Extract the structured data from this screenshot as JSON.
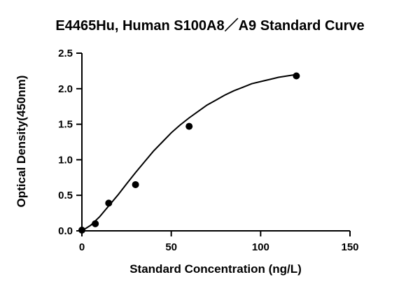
{
  "chart_data": {
    "type": "scatter",
    "title": "E4465Hu, Human S100A8／A9 Standard Curve",
    "xlabel": "Standard Concentration (ng/L)",
    "ylabel": "Optical Density(450nm)",
    "xlim": [
      0,
      150
    ],
    "ylim": [
      0,
      2.5
    ],
    "xticks": [
      0,
      50,
      100,
      150
    ],
    "xtick_labels": [
      "0",
      "50",
      "100",
      "150"
    ],
    "yticks": [
      0.0,
      0.5,
      1.0,
      1.5,
      2.0,
      2.5
    ],
    "ytick_labels": [
      "0.0",
      "0.5",
      "1.0",
      "1.5",
      "2.0",
      "2.5"
    ],
    "grid": false,
    "series": [
      {
        "x": [
          0,
          7.5,
          15,
          30,
          60,
          120
        ],
        "y": [
          0.01,
          0.1,
          0.39,
          0.65,
          1.47,
          2.18
        ]
      }
    ],
    "fit_curve": {
      "x": [
        0,
        5,
        10,
        15,
        20,
        25,
        30,
        35,
        40,
        45,
        50,
        55,
        60,
        65,
        70,
        75,
        80,
        85,
        90,
        95,
        100,
        105,
        110,
        115,
        120
      ],
      "y": [
        0.0,
        0.08,
        0.2,
        0.35,
        0.5,
        0.66,
        0.82,
        0.97,
        1.12,
        1.25,
        1.38,
        1.49,
        1.59,
        1.68,
        1.77,
        1.84,
        1.91,
        1.97,
        2.02,
        2.07,
        2.1,
        2.13,
        2.16,
        2.18,
        2.2
      ]
    }
  }
}
